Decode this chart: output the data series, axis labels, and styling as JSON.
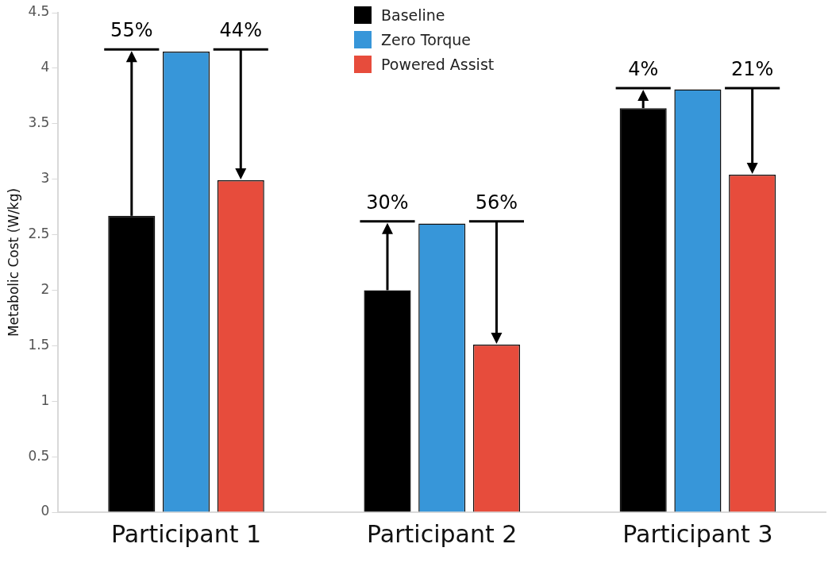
{
  "chart_data": {
    "type": "bar",
    "ylabel": "Metabolic Cost (W/kg)",
    "categories": [
      "Participant 1",
      "Participant 2",
      "Participant 3"
    ],
    "series": [
      {
        "name": "Baseline",
        "color": "#000000",
        "values": [
          2.67,
          2.0,
          3.64
        ]
      },
      {
        "name": "Zero Torque",
        "color": "#3796d9",
        "values": [
          4.15,
          2.6,
          3.81
        ]
      },
      {
        "name": "Powered Assist",
        "color": "#e74c3c",
        "values": [
          2.99,
          1.51,
          3.04
        ]
      }
    ],
    "ylim": [
      0,
      4.5
    ],
    "yticks": [
      0,
      0.5,
      1,
      1.5,
      2,
      2.5,
      3,
      3.5,
      4,
      4.5
    ],
    "grid": false,
    "legend": "top",
    "annotations": [
      {
        "text": "55%",
        "x": "Participant 1",
        "y": 4.17
      },
      {
        "text": "44%",
        "x": "Participant 1",
        "y": 4.17
      },
      {
        "text": "30%",
        "x": "Participant 2",
        "y": 2.62
      },
      {
        "text": "56%",
        "x": "Participant 2",
        "y": 2.62
      },
      {
        "text": "4%",
        "x": "Participant 3",
        "y": 3.82
      },
      {
        "text": "21%",
        "x": "Participant 3",
        "y": 3.82
      }
    ]
  }
}
